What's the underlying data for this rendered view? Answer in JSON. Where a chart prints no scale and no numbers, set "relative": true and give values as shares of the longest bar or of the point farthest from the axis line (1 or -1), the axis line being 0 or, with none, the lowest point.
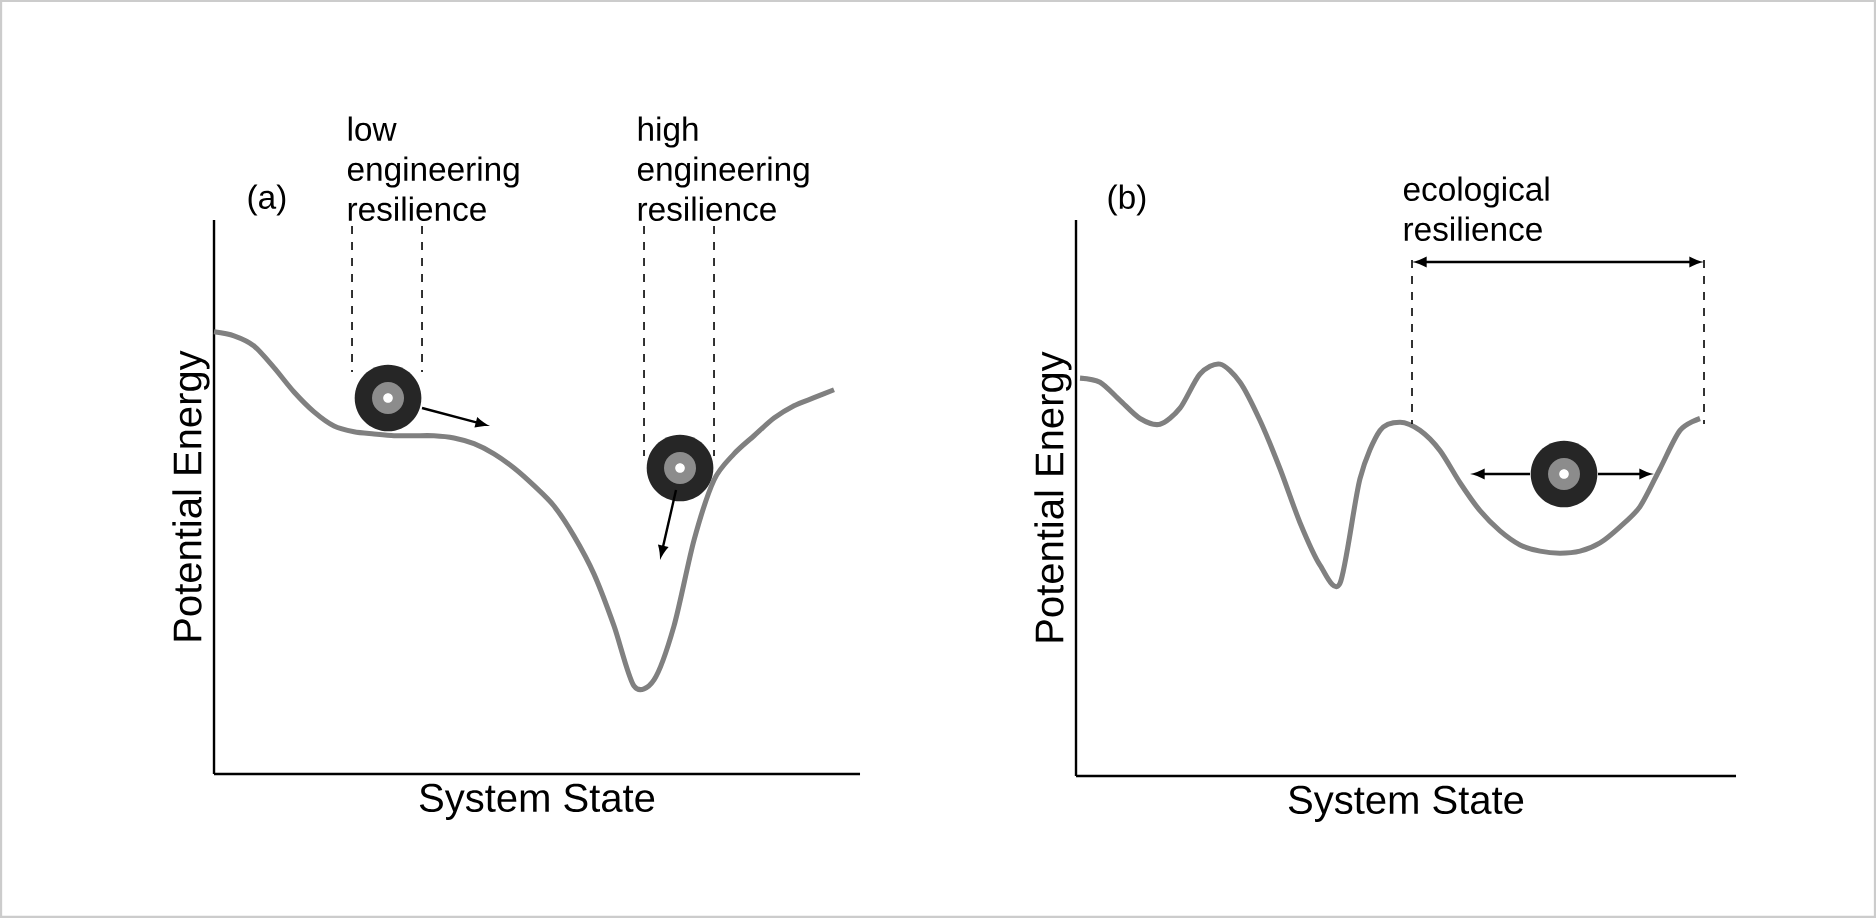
{
  "chart_data": [
    {
      "type": "line",
      "relative": true,
      "xlabel": "System State",
      "ylabel": "Potential Energy",
      "annotations": [
        "(a)",
        "low engineering resilience",
        "high engineering resilience"
      ],
      "categories": [
        null,
        null,
        null,
        null,
        null,
        null,
        null,
        null,
        null,
        null,
        null,
        null,
        null,
        null,
        null,
        null,
        null,
        null,
        null,
        null,
        null,
        null,
        null,
        null,
        null,
        null,
        null,
        null,
        null,
        null,
        null,
        null
      ],
      "series": [
        {
          "color": "#808080",
          "values": [
            1,
            0.991,
            0.968,
            0.919,
            0.864,
            0.819,
            0.787,
            0.774,
            0.769,
            0.765,
            0.765,
            0.765,
            0.76,
            0.747,
            0.724,
            0.692,
            0.652,
            0.606,
            0.538,
            0.452,
            0.335,
            0.199,
            0.213,
            0.335,
            0.529,
            0.665,
            0.724,
            0.765,
            0.805,
            0.833,
            0.851,
            0.869
          ]
        }
      ]
    },
    {
      "type": "line",
      "relative": true,
      "xlabel": "System State",
      "ylabel": "Potential Energy",
      "annotations": [
        "(b)",
        "ecological resilience"
      ],
      "categories": [
        null,
        null,
        null,
        null,
        null,
        null,
        null,
        null,
        null,
        null,
        null,
        null,
        null,
        null,
        null,
        null,
        null,
        null,
        null,
        null,
        null,
        null,
        null,
        null,
        null,
        null,
        null,
        null,
        null,
        null,
        null,
        null
      ],
      "series": [
        {
          "color": "#808080",
          "values": [
            0.966,
            0.956,
            0.912,
            0.868,
            0.854,
            0.893,
            0.976,
            1,
            0.956,
            0.863,
            0.746,
            0.615,
            0.512,
            0.468,
            0.722,
            0.839,
            0.859,
            0.839,
            0.79,
            0.712,
            0.644,
            0.595,
            0.561,
            0.546,
            0.541,
            0.546,
            0.566,
            0.605,
            0.654,
            0.746,
            0.839,
            0.868
          ]
        }
      ]
    }
  ]
}
